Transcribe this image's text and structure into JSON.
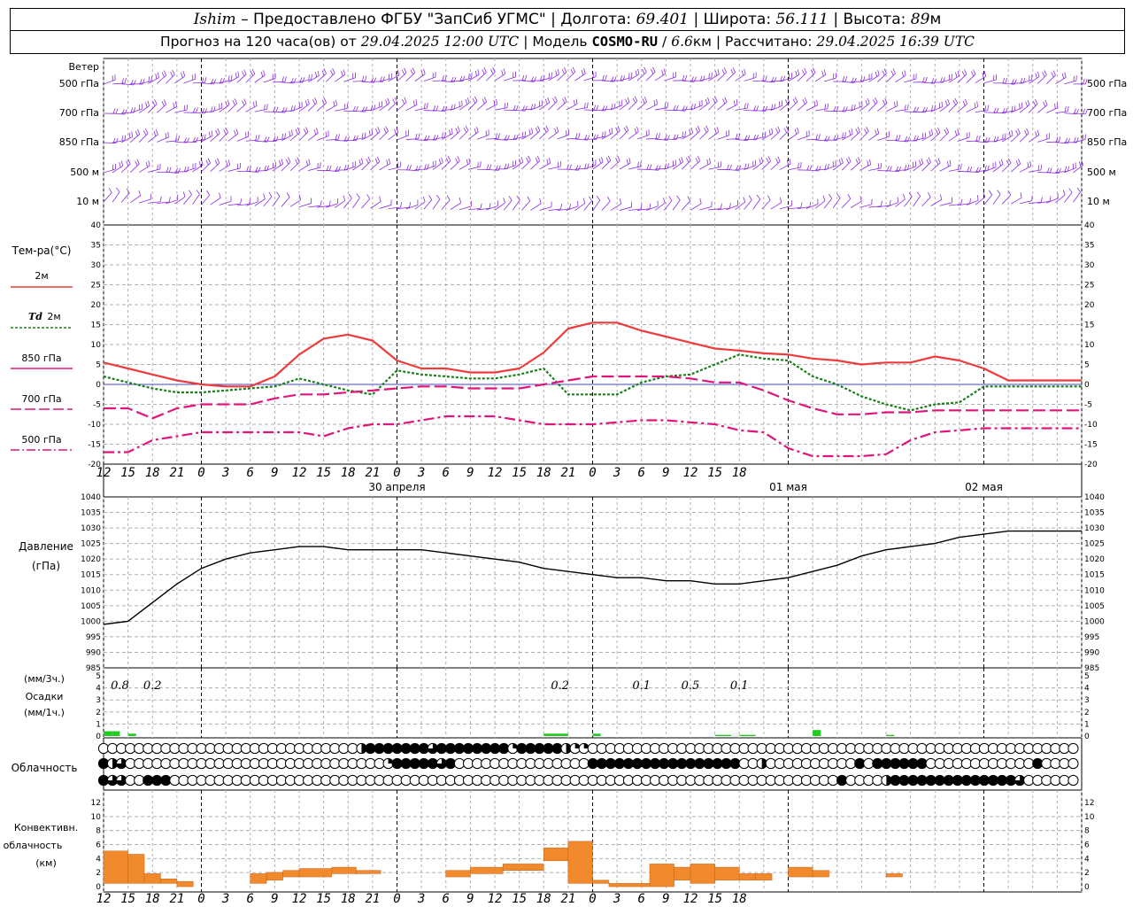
{
  "header": {
    "station": "Ishim",
    "provider": "– Предоставлено ФГБУ \"ЗапСиб УГМС\"",
    "lon_label": "Долгота:",
    "lon_value": "69.401",
    "lat_label": "Широта:",
    "lat_value": "56.111",
    "alt_label": "Высота:",
    "alt_value": "89",
    "alt_unit": "м",
    "forecast_prefix": "Прогноз на 120 часа(ов) от",
    "forecast_start": "29.04.2025 12:00 UTC",
    "model_prefix": "Модель",
    "model_name": "COSMO-RU",
    "model_res": "6.6",
    "model_res_unit": "км",
    "computed_label": "Рассчитано:",
    "computed_value": "29.04.2025 16:39 UTC",
    "sep": "|",
    "slash": "/"
  },
  "colors": {
    "wind": "#8a2be2",
    "t2m": "#ee3b3b",
    "td2m": "#1a7f1a",
    "t850": "#e0157a",
    "t700": "#e0157a",
    "t500": "#e0157a",
    "pressure": "#000000",
    "precip": "#22cc22",
    "convective": "#f08a2c",
    "grid": "#b0b0b0"
  },
  "x_axis": {
    "hour_labels": [
      "12",
      "15",
      "18",
      "21",
      "0",
      "3",
      "6",
      "9",
      "12",
      "15",
      "18",
      "21",
      "0",
      "3",
      "6",
      "9",
      "12",
      "15",
      "18",
      "21",
      "0",
      "3",
      "6",
      "9",
      "12",
      "15",
      "18"
    ],
    "dates": [
      "30 апреля",
      "01 мая",
      "02 мая"
    ]
  },
  "wind_panel": {
    "levels": [
      "500 гПа",
      "700 гПа",
      "850 гПа",
      "500 м",
      "10 м"
    ],
    "title": "Ветер"
  },
  "temp_panel": {
    "title": "Тем-ра(°С)",
    "legend": [
      "2м",
      "Td",
      "2м",
      "850 гПа",
      "700 гПа",
      "500 гПа"
    ],
    "ticks": [
      "40",
      "35",
      "30",
      "25",
      "20",
      "15",
      "10",
      "5",
      "0",
      "-5",
      "-10",
      "-15",
      "-20"
    ]
  },
  "pressure_panel": {
    "title": "Давление",
    "unit": "(гПа)",
    "ticks": [
      "1040",
      "1035",
      "1030",
      "1025",
      "1020",
      "1015",
      "1010",
      "1005",
      "1000",
      "995",
      "990",
      "985"
    ]
  },
  "precip_panel": {
    "unit_top": "(мм/3ч.)",
    "title": "Осадки",
    "unit_bottom": "(мм/1ч.)",
    "ticks": [
      "5",
      "4",
      "3",
      "2",
      "1",
      "0"
    ],
    "totals": [
      "0.8",
      "0.2",
      "0.2",
      "0.1",
      "0.5",
      "0.1"
    ]
  },
  "cloud_panel": {
    "title": "Облачность"
  },
  "conv_panel": {
    "title_1": "Конвективн.",
    "title_2": "облачность",
    "unit": "(км)",
    "ticks": [
      "12",
      "10",
      "8",
      "6",
      "4",
      "2",
      "0"
    ]
  },
  "chart_data": [
    {
      "type": "line",
      "panel": "temperature",
      "x_hours": [
        0,
        3,
        6,
        9,
        12,
        15,
        18,
        21,
        24,
        27,
        30,
        33,
        36,
        39,
        42,
        45,
        48,
        51,
        54,
        57,
        60,
        63,
        66,
        69,
        72,
        75,
        78,
        81,
        84,
        87,
        90,
        93,
        96,
        99,
        102,
        105,
        108,
        111,
        114,
        117,
        120
      ],
      "ylim": [
        -20,
        40
      ],
      "series": [
        {
          "name": "2м",
          "style": "solid",
          "values": [
            5.5,
            4.0,
            2.5,
            1.0,
            0.0,
            -0.5,
            -0.5,
            2.0,
            7.5,
            11.5,
            12.5,
            11.0,
            6.0,
            4.0,
            4.0,
            3.0,
            3.0,
            4.0,
            8.0,
            14.0,
            15.5,
            15.5,
            13.5,
            12.0,
            10.5,
            9.0,
            8.5,
            7.8,
            7.5,
            6.5,
            6.0,
            5.0,
            5.5,
            5.5,
            7.0,
            6.0,
            4.0,
            1.0,
            1.0,
            1.0,
            1.0
          ]
        },
        {
          "name": "Td 2м",
          "style": "dotted",
          "values": [
            2.0,
            0.5,
            -1.0,
            -2.0,
            -2.0,
            -1.5,
            -1.0,
            -0.5,
            1.5,
            0.0,
            -1.5,
            -2.5,
            3.5,
            2.5,
            2.0,
            1.5,
            1.5,
            2.5,
            4.0,
            -2.5,
            -2.5,
            -2.5,
            0.5,
            2.0,
            2.5,
            5.0,
            7.5,
            6.5,
            6.0,
            2.0,
            0.0,
            -3.0,
            -5.0,
            -6.5,
            -5.0,
            -4.5,
            -0.5,
            -0.5,
            -0.5,
            -0.5,
            -0.5
          ]
        },
        {
          "name": "850 гПа",
          "style": "long-dash",
          "values": [
            -6.0,
            -6.0,
            -8.5,
            -6.0,
            -5.0,
            -5.0,
            -5.0,
            -3.5,
            -2.5,
            -2.5,
            -2.0,
            -1.5,
            -1.0,
            -0.5,
            -0.5,
            -1.0,
            -1.0,
            -1.0,
            0.0,
            1.0,
            2.0,
            2.0,
            2.0,
            2.0,
            1.5,
            0.5,
            0.5,
            -1.5,
            -4.0,
            -6.0,
            -7.5,
            -7.5,
            -7.0,
            -7.0,
            -6.5,
            -6.5,
            -6.5,
            -6.5,
            -6.5,
            -6.5,
            -6.5
          ]
        },
        {
          "name": "700 гПа",
          "style": "dash-dot",
          "values": [
            -17.0,
            -17.0,
            -14.0,
            -13.0,
            -12.0,
            -12.0,
            -12.0,
            -12.0,
            -12.0,
            -13.0,
            -11.0,
            -10.0,
            -10.0,
            -9.0,
            -8.0,
            -8.0,
            -8.0,
            -9.0,
            -10.0,
            -10.0,
            -10.0,
            -9.5,
            -9.0,
            -9.0,
            -9.5,
            -10.0,
            -11.5,
            -12.0,
            -16.0,
            -18.0,
            -18.0,
            -18.0,
            -17.5,
            -14.0,
            -12.0,
            -11.5,
            -11.0,
            -11.0,
            -11.0,
            -11.0,
            -11.0
          ]
        }
      ]
    },
    {
      "type": "line",
      "panel": "pressure",
      "x_hours": [
        0,
        3,
        6,
        9,
        12,
        15,
        18,
        21,
        24,
        27,
        30,
        33,
        36,
        39,
        42,
        45,
        48,
        51,
        54,
        57,
        60,
        63,
        66,
        69,
        72,
        75,
        78,
        81,
        84,
        87,
        90,
        93,
        96,
        99,
        102,
        105,
        108,
        111,
        114,
        117,
        120
      ],
      "ylim": [
        985,
        1040
      ],
      "series": [
        {
          "name": "Давление",
          "values": [
            999,
            1000,
            1006,
            1012,
            1017,
            1020,
            1022,
            1023,
            1024,
            1024,
            1023,
            1023,
            1023,
            1023,
            1022,
            1021,
            1020,
            1019,
            1017,
            1016,
            1015,
            1014,
            1014,
            1013,
            1013,
            1012,
            1012,
            1013,
            1014,
            1016,
            1018,
            1021,
            1023,
            1024,
            1025,
            1027,
            1028,
            1029,
            1029,
            1029,
            1029
          ]
        }
      ]
    },
    {
      "type": "bar",
      "panel": "precipitation",
      "ylim": [
        0,
        5
      ],
      "bars": [
        {
          "hour": 0,
          "width_h": 1,
          "value": 0.4
        },
        {
          "hour": 1,
          "width_h": 1,
          "value": 0.4
        },
        {
          "hour": 3,
          "width_h": 1,
          "value": 0.2
        },
        {
          "hour": 54,
          "width_h": 3,
          "value": 0.2
        },
        {
          "hour": 60,
          "width_h": 1,
          "value": 0.2
        },
        {
          "hour": 75,
          "width_h": 2,
          "value": 0.1
        },
        {
          "hour": 78,
          "width_h": 2,
          "value": 0.1
        },
        {
          "hour": 87,
          "width_h": 1,
          "value": 0.5
        },
        {
          "hour": 96,
          "width_h": 1,
          "value": 0.1
        }
      ]
    },
    {
      "type": "bar",
      "panel": "convective_cloud",
      "ylim": [
        0,
        13
      ],
      "bars": [
        {
          "hour": 0,
          "width_h": 3,
          "bottom": 0.5,
          "top": 5.5
        },
        {
          "hour": 3,
          "width_h": 2,
          "bottom": 0.5,
          "top": 5.0
        },
        {
          "hour": 5,
          "width_h": 2,
          "bottom": 0.5,
          "top": 2.0
        },
        {
          "hour": 7,
          "width_h": 2,
          "bottom": 0.5,
          "top": 1.2
        },
        {
          "hour": 9,
          "width_h": 2,
          "bottom": 0.0,
          "top": 0.8
        },
        {
          "hour": 18,
          "width_h": 2,
          "bottom": 0.5,
          "top": 2.0
        },
        {
          "hour": 20,
          "width_h": 2,
          "bottom": 1.0,
          "top": 2.2
        },
        {
          "hour": 22,
          "width_h": 2,
          "bottom": 1.5,
          "top": 2.5
        },
        {
          "hour": 24,
          "width_h": 4,
          "bottom": 1.5,
          "top": 2.8
        },
        {
          "hour": 28,
          "width_h": 3,
          "bottom": 2.0,
          "top": 3.0
        },
        {
          "hour": 31,
          "width_h": 3,
          "bottom": 2.0,
          "top": 2.5
        },
        {
          "hour": 42,
          "width_h": 3,
          "bottom": 1.5,
          "top": 2.5
        },
        {
          "hour": 45,
          "width_h": 4,
          "bottom": 2.0,
          "top": 3.0
        },
        {
          "hour": 49,
          "width_h": 5,
          "bottom": 2.5,
          "top": 3.5
        },
        {
          "hour": 54,
          "width_h": 3,
          "bottom": 4.0,
          "top": 6.0
        },
        {
          "hour": 57,
          "width_h": 3,
          "bottom": 0.5,
          "top": 7.0
        },
        {
          "hour": 60,
          "width_h": 2,
          "bottom": 0.5,
          "top": 1.0
        },
        {
          "hour": 62,
          "width_h": 5,
          "bottom": 0.0,
          "top": 0.5
        },
        {
          "hour": 67,
          "width_h": 3,
          "bottom": 0.0,
          "top": 3.5
        },
        {
          "hour": 70,
          "width_h": 2,
          "bottom": 1.0,
          "top": 3.0
        },
        {
          "hour": 72,
          "width_h": 3,
          "bottom": 0.5,
          "top": 3.5
        },
        {
          "hour": 75,
          "width_h": 3,
          "bottom": 1.0,
          "top": 3.0
        },
        {
          "hour": 78,
          "width_h": 2,
          "bottom": 1.0,
          "top": 2.0
        },
        {
          "hour": 80,
          "width_h": 2,
          "bottom": 1.0,
          "top": 2.0
        },
        {
          "hour": 84,
          "width_h": 3,
          "bottom": 1.5,
          "top": 3.0
        },
        {
          "hour": 87,
          "width_h": 2,
          "bottom": 1.5,
          "top": 2.5
        },
        {
          "hour": 96,
          "width_h": 2,
          "bottom": 1.5,
          "top": 2.0
        }
      ]
    }
  ],
  "cloud_cover": {
    "rows": [
      "000000000000000000000000000002444444434444444414444421100000000000000000000000000000000000000000000000000000004",
      "423000000000000000000000000000001444443400000000000000044444444444444444002000000000040444444000000000000400000024",
      "433004440000000000000000000000000000000000000000000000000000000000000000000000000004000024444444444444430000000300"
    ]
  }
}
